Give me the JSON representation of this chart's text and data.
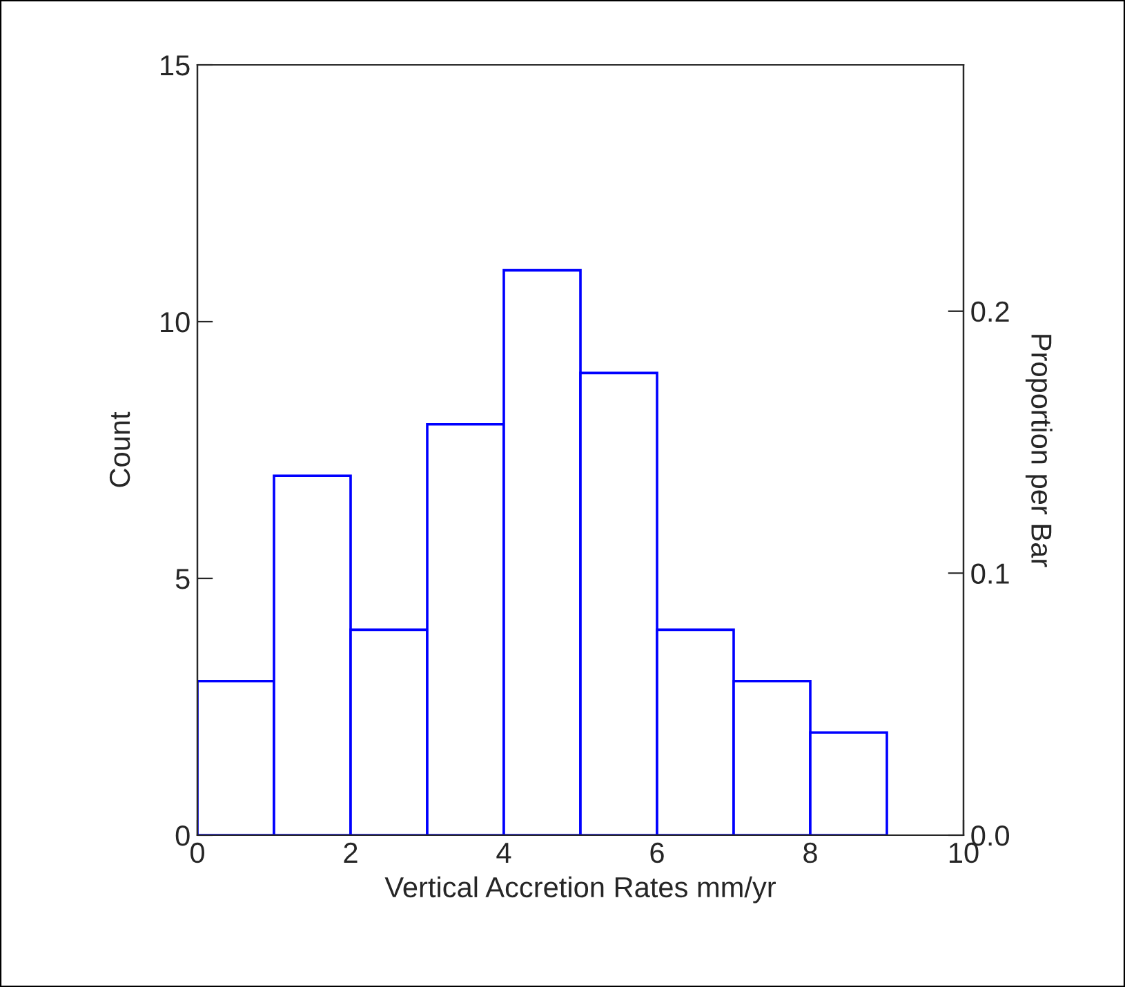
{
  "chart_data": {
    "type": "histogram",
    "xlabel": "Vertical Accretion Rates mm/yr",
    "ylabel": "Count",
    "y2label": "Proportion per Bar",
    "bins": [
      0,
      1,
      2,
      3,
      4,
      5,
      6,
      7,
      8,
      9
    ],
    "values": [
      3,
      7,
      4,
      8,
      11,
      9,
      4,
      3,
      2
    ],
    "color": "#0000ff",
    "xlim": [
      0,
      10
    ],
    "xticks": [
      0,
      2,
      4,
      6,
      8,
      10
    ],
    "ylim": [
      0,
      15
    ],
    "yticks": [
      0,
      5,
      10,
      15
    ],
    "y2lim": [
      0,
      0.294
    ],
    "y2ticks": [
      {
        "value": 0,
        "label": "0.0"
      },
      0.1,
      0.2
    ],
    "grid": false
  }
}
